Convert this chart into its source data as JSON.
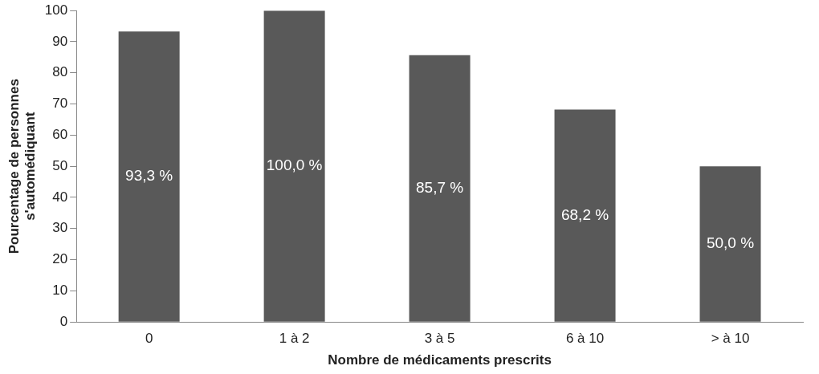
{
  "chart_data": {
    "type": "bar",
    "xlabel": "Nombre de médicaments prescrits",
    "ylabel": "Pourcentage de personnes\ns'automédiquant",
    "categories": [
      "0",
      "1 à 2",
      "3 à 5",
      "6 à 10",
      "> à 10"
    ],
    "values": [
      93.3,
      100.0,
      85.7,
      68.2,
      50.0
    ],
    "value_labels": [
      "93,3 %",
      "100,0 %",
      "85,7 %",
      "68,2 %",
      "50,0 %"
    ],
    "color": "#595959",
    "ylim": [
      0,
      100
    ],
    "yticks": [
      0,
      10,
      20,
      30,
      40,
      50,
      60,
      70,
      80,
      90,
      100
    ],
    "grid": false,
    "legend": false
  }
}
